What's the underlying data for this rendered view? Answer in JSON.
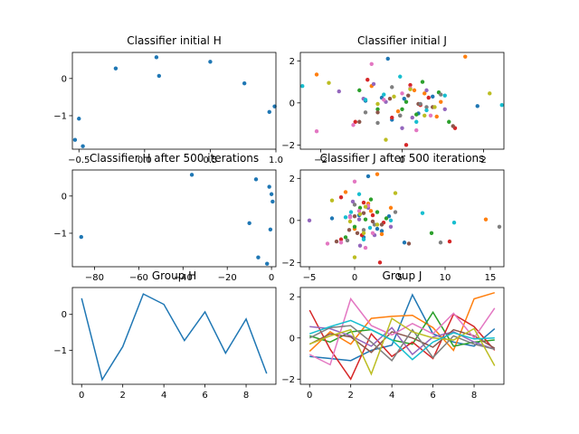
{
  "palette": [
    "#1f77b4",
    "#ff7f0e",
    "#2ca02c",
    "#d62728",
    "#9467bd",
    "#8c564b",
    "#e377c2",
    "#7f7f7f",
    "#bcbd22",
    "#17becf"
  ],
  "chart_data": [
    {
      "id": "classifier-initial-h",
      "type": "scatter",
      "title": "Classifier initial H",
      "xlim": [
        -0.55,
        1.0
      ],
      "ylim": [
        -1.9,
        0.7
      ],
      "xticks": [
        -0.5,
        0.0,
        0.5,
        1.0
      ],
      "xtick_labels": [
        "−0.5",
        "0.0",
        "0.5",
        "1.0"
      ],
      "yticks": [
        -1,
        0
      ],
      "ytick_labels": [
        "−1",
        "0"
      ],
      "series": [
        {
          "color": "#1f77b4",
          "x": [
            -0.53,
            -0.5,
            -0.47,
            -0.22,
            0.09,
            0.11,
            0.5,
            0.76,
            0.95,
            0.99
          ],
          "y": [
            -1.65,
            -1.08,
            -1.82,
            0.27,
            0.57,
            0.07,
            0.45,
            -0.13,
            -0.9,
            -0.75
          ]
        }
      ]
    },
    {
      "id": "classifier-initial-j",
      "type": "scatter",
      "title": "Classifier initial J",
      "xlim": [
        -2.5,
        2.5
      ],
      "ylim": [
        -2.2,
        2.4
      ],
      "xticks": [
        -2,
        0,
        2
      ],
      "xtick_labels": [
        "−2",
        "0",
        "2"
      ],
      "yticks": [
        -2,
        0,
        2
      ],
      "ytick_labels": [
        "−2",
        "0",
        "2"
      ],
      "series": [
        {
          "color": "#1f77b4",
          "x": [
            -0.35,
            -0.9,
            0.4,
            0.05,
            1.85,
            -0.5,
            0.75,
            -0.25
          ],
          "y": [
            2.1,
            0.1,
            -0.5,
            0.2,
            -0.15,
            0.25,
            0.3,
            -0.8
          ]
        },
        {
          "color": "#ff7f0e",
          "x": [
            -2.1,
            1.55,
            -0.75,
            0.3,
            0.85,
            -0.1,
            0.55,
            0.95
          ],
          "y": [
            1.35,
            2.2,
            0.8,
            0.6,
            -0.65,
            -0.4,
            0.45,
            0.05
          ]
        },
        {
          "color": "#2ca02c",
          "x": [
            1.15,
            0.0,
            -0.6,
            0.35,
            0.1,
            -1.05,
            0.9,
            0.5
          ],
          "y": [
            -0.9,
            -0.3,
            -0.3,
            -0.55,
            0.05,
            0.6,
            0.5,
            1.0
          ]
        },
        {
          "color": "#d62728",
          "x": [
            0.1,
            -0.85,
            1.3,
            0.45,
            -0.25,
            -1.15,
            0.65,
            0.2
          ],
          "y": [
            -2.0,
            1.1,
            -1.2,
            -0.1,
            -0.7,
            -0.9,
            0.25,
            0.85
          ]
        },
        {
          "color": "#9467bd",
          "x": [
            -1.55,
            -0.95,
            0.25,
            -0.4,
            1.05,
            0.6,
            -0.7,
            0.0
          ],
          "y": [
            0.55,
            0.2,
            -0.7,
            0.05,
            -0.3,
            0.6,
            0.9,
            -1.2
          ]
        },
        {
          "color": "#8c564b",
          "x": [
            -1.05,
            1.25,
            -0.3,
            0.75,
            -0.6,
            0.15,
            0.4,
            -0.05
          ],
          "y": [
            -0.9,
            -1.1,
            0.2,
            -0.2,
            -0.45,
            0.35,
            -0.05,
            -0.6
          ]
        },
        {
          "color": "#e377c2",
          "x": [
            -2.1,
            0.35,
            -0.45,
            -0.75,
            0.7,
            -1.2,
            0.2,
            0.0
          ],
          "y": [
            -1.35,
            -1.3,
            0.15,
            1.85,
            -0.6,
            -1.05,
            0.7,
            0.45
          ]
        },
        {
          "color": "#7f7f7f",
          "x": [
            -0.05,
            0.45,
            -0.9,
            0.95,
            -0.25,
            0.6,
            -0.6
          ],
          "y": [
            -0.6,
            -0.05,
            -0.45,
            0.4,
            0.75,
            -0.2,
            -0.95
          ]
        },
        {
          "color": "#bcbd22",
          "x": [
            -1.8,
            0.55,
            -0.4,
            2.15,
            -0.2,
            -0.6,
            0.8,
            0.2
          ],
          "y": [
            0.95,
            -0.6,
            -1.75,
            0.45,
            0.3,
            -0.05,
            -0.2,
            0.65
          ]
        },
        {
          "color": "#17becf",
          "x": [
            -2.45,
            2.45,
            1.05,
            -0.05,
            -0.45,
            0.6,
            -0.9,
            0.35
          ],
          "y": [
            0.8,
            -0.1,
            0.35,
            1.25,
            0.4,
            -0.35,
            0.15,
            -0.9
          ]
        }
      ]
    },
    {
      "id": "classifier-h-500",
      "type": "scatter",
      "title": "Classifier H after 500 iterations",
      "xlim": [
        -90,
        2
      ],
      "ylim": [
        -1.9,
        0.7
      ],
      "xticks": [
        -80,
        -60,
        -40,
        -20,
        0
      ],
      "xtick_labels": [
        "−80",
        "−60",
        "−40",
        "−20",
        "0"
      ],
      "yticks": [
        -1,
        0
      ],
      "ytick_labels": [
        "−1",
        "0"
      ],
      "series": [
        {
          "color": "#1f77b4",
          "x": [
            -86,
            -36,
            -10,
            -7,
            -6,
            -1,
            0,
            0.5,
            -0.5,
            -2
          ],
          "y": [
            -1.1,
            0.57,
            -0.73,
            0.45,
            -1.65,
            0.25,
            0.05,
            -0.15,
            -0.9,
            -1.82
          ]
        }
      ]
    },
    {
      "id": "classifier-j-500",
      "type": "scatter",
      "title": "Classifier J after 500 iterations",
      "xlim": [
        -6.0,
        16.5
      ],
      "ylim": [
        -2.2,
        2.4
      ],
      "xticks": [
        -5,
        0,
        5,
        10,
        15
      ],
      "xtick_labels": [
        "−5",
        "0",
        "5",
        "10",
        "15"
      ],
      "yticks": [
        -2,
        0,
        2
      ],
      "ytick_labels": [
        "−2",
        "0",
        "2"
      ],
      "series": [
        {
          "color": "#1f77b4",
          "x": [
            1.5,
            -2.5,
            3.0,
            5.5,
            3.8,
            0.5,
            2.5,
            1.0
          ],
          "y": [
            2.1,
            0.1,
            -0.5,
            -1.05,
            0.2,
            0.25,
            -0.4,
            -0.8
          ]
        },
        {
          "color": "#ff7f0e",
          "x": [
            -1.0,
            2.5,
            1.5,
            14.5,
            3.0,
            0.0,
            1.8,
            4.0
          ],
          "y": [
            1.35,
            2.2,
            0.8,
            0.05,
            -0.65,
            -0.4,
            0.45,
            0.6
          ]
        },
        {
          "color": "#2ca02c",
          "x": [
            8.5,
            0.0,
            -1.0,
            2.5,
            1.2,
            0.6,
            3.5,
            1.8
          ],
          "y": [
            -0.6,
            -0.3,
            -0.8,
            0.4,
            0.05,
            0.6,
            0.1,
            1.0
          ]
        },
        {
          "color": "#d62728",
          "x": [
            2.8,
            -1.5,
            10.5,
            3.2,
            0.8,
            -1.5,
            2.0,
            1.0
          ],
          "y": [
            -2.0,
            1.1,
            -1.0,
            -0.1,
            -0.7,
            -0.9,
            0.25,
            0.85
          ]
        },
        {
          "color": "#9467bd",
          "x": [
            -5.0,
            -0.5,
            2.2,
            0.5,
            4.0,
            1.5,
            -0.2,
            0.6
          ],
          "y": [
            0.0,
            0.2,
            -0.7,
            0.05,
            -0.3,
            0.6,
            0.9,
            -1.2
          ]
        },
        {
          "color": "#8c564b",
          "x": [
            -2.0,
            6.0,
            0.0,
            3.0,
            -0.6,
            1.0,
            2.0,
            0.3
          ],
          "y": [
            -1.0,
            -1.1,
            0.2,
            -0.2,
            -0.45,
            0.35,
            -0.05,
            -0.6
          ]
        },
        {
          "color": "#e377c2",
          "x": [
            -3.0,
            1.2,
            -0.5,
            0.0,
            2.0,
            -1.5,
            1.5,
            0.5
          ],
          "y": [
            -1.1,
            -1.3,
            0.15,
            1.85,
            -0.6,
            -1.05,
            0.7,
            0.45
          ]
        },
        {
          "color": "#7f7f7f",
          "x": [
            16.0,
            9.5,
            1.0,
            4.5,
            0.0,
            2.2,
            -0.8
          ],
          "y": [
            -0.3,
            -1.05,
            -0.45,
            0.4,
            0.75,
            -0.2,
            -0.95
          ]
        },
        {
          "color": "#bcbd22",
          "x": [
            -2.5,
            1.0,
            0.0,
            4.5,
            0.6,
            -0.5,
            2.5,
            1.2
          ],
          "y": [
            0.95,
            -0.6,
            -1.75,
            1.3,
            0.3,
            -0.05,
            -0.2,
            0.65
          ]
        },
        {
          "color": "#17becf",
          "x": [
            11.0,
            7.5,
            4.0,
            0.5,
            -0.4,
            1.7,
            -1.0,
            1.0
          ],
          "y": [
            -0.1,
            0.35,
            0.0,
            1.25,
            0.4,
            -0.35,
            0.15,
            -0.9
          ]
        }
      ]
    },
    {
      "id": "group-h",
      "type": "line",
      "title": "Group H",
      "xlim": [
        -0.45,
        9.45
      ],
      "ylim": [
        -1.95,
        0.75
      ],
      "xticks": [
        0,
        2,
        4,
        6,
        8
      ],
      "xtick_labels": [
        "0",
        "2",
        "4",
        "6",
        "8"
      ],
      "yticks": [
        -1,
        0
      ],
      "ytick_labels": [
        "−1",
        "0"
      ],
      "series": [
        {
          "color": "#1f77b4",
          "x": [
            0,
            1,
            2,
            3,
            4,
            5,
            6,
            7,
            8,
            9
          ],
          "y": [
            0.45,
            -1.82,
            -0.9,
            0.57,
            0.28,
            -0.73,
            0.07,
            -1.08,
            -0.13,
            -1.65
          ]
        }
      ]
    },
    {
      "id": "group-j",
      "type": "line",
      "title": "Group J",
      "xlim": [
        -0.45,
        9.45
      ],
      "ylim": [
        -2.25,
        2.45
      ],
      "xticks": [
        0,
        2,
        4,
        6,
        8
      ],
      "xtick_labels": [
        "0",
        "2",
        "4",
        "6",
        "8"
      ],
      "yticks": [
        -2,
        0,
        2
      ],
      "ytick_labels": [
        "−2",
        "0",
        "2"
      ],
      "series": [
        {
          "color": "#1f77b4",
          "x": [
            0,
            1,
            2,
            3,
            4,
            5,
            6,
            7,
            8,
            9
          ],
          "y": [
            -0.9,
            -1.0,
            -1.1,
            -0.6,
            -0.35,
            2.1,
            0.2,
            -0.2,
            -0.4,
            0.45
          ]
        },
        {
          "color": "#ff7f0e",
          "x": [
            0,
            1,
            2,
            3,
            4,
            5,
            6,
            7,
            8,
            9
          ],
          "y": [
            -0.65,
            0.3,
            -0.3,
            0.95,
            1.05,
            1.1,
            0.5,
            -0.6,
            1.9,
            2.2
          ]
        },
        {
          "color": "#2ca02c",
          "x": [
            0,
            1,
            2,
            3,
            4,
            5,
            6,
            7,
            8,
            9
          ],
          "y": [
            0.1,
            -0.2,
            0.3,
            0.4,
            -0.1,
            -0.3,
            1.25,
            -0.4,
            -0.2,
            -0.1
          ]
        },
        {
          "color": "#d62728",
          "x": [
            0,
            1,
            2,
            3,
            4,
            5,
            6,
            7,
            8,
            9
          ],
          "y": [
            1.35,
            -0.55,
            -2.0,
            0.2,
            -0.9,
            -0.2,
            -1.0,
            1.15,
            0.55,
            -0.6
          ]
        },
        {
          "color": "#9467bd",
          "x": [
            0,
            1,
            2,
            3,
            4,
            5,
            6,
            7,
            8,
            9
          ],
          "y": [
            0.55,
            0.45,
            0.1,
            -0.4,
            0.5,
            -0.8,
            0.05,
            0.3,
            -0.2,
            -0.55
          ]
        },
        {
          "color": "#8c564b",
          "x": [
            0,
            1,
            2,
            3,
            4,
            5,
            6,
            7,
            8,
            9
          ],
          "y": [
            -0.3,
            0.2,
            0.05,
            -0.7,
            0.3,
            0.0,
            -0.45,
            0.4,
            0.1,
            -0.5
          ]
        },
        {
          "color": "#e377c2",
          "x": [
            0,
            1,
            2,
            3,
            4,
            5,
            6,
            7,
            8,
            9
          ],
          "y": [
            -0.8,
            -1.3,
            1.9,
            0.6,
            0.15,
            0.7,
            0.2,
            1.2,
            0.0,
            1.45
          ]
        },
        {
          "color": "#7f7f7f",
          "x": [
            0,
            1,
            2,
            3,
            4,
            5,
            6,
            7,
            8,
            9
          ],
          "y": [
            0.0,
            0.5,
            0.6,
            -0.2,
            -1.1,
            0.4,
            -0.95,
            0.1,
            -0.3,
            -0.55
          ]
        },
        {
          "color": "#bcbd22",
          "x": [
            0,
            1,
            2,
            3,
            4,
            5,
            6,
            7,
            8,
            9
          ],
          "y": [
            -0.3,
            0.1,
            0.4,
            -1.75,
            0.95,
            0.3,
            0.0,
            -0.1,
            0.45,
            -1.35
          ]
        },
        {
          "color": "#17becf",
          "x": [
            0,
            1,
            2,
            3,
            4,
            5,
            6,
            7,
            8,
            9
          ],
          "y": [
            0.2,
            0.55,
            0.85,
            0.4,
            -0.1,
            -1.05,
            -0.2,
            0.25,
            -0.05,
            0.0
          ]
        }
      ]
    }
  ]
}
